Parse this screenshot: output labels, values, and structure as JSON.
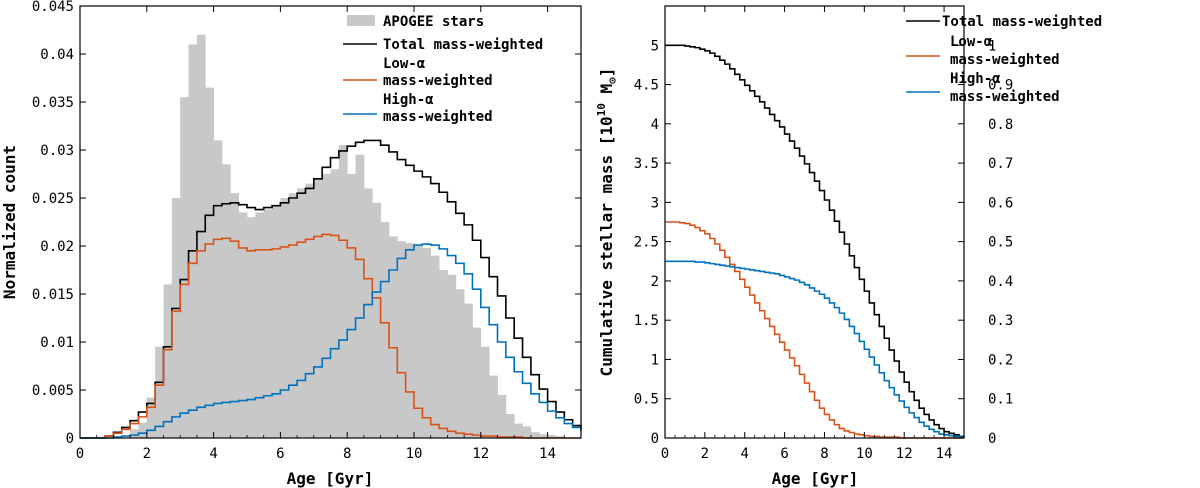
{
  "chart_data": [
    {
      "type": "histogram",
      "xlabel": "Age [Gyr]",
      "ylabel": "Normalized count",
      "xlim": [
        0,
        15
      ],
      "ylim": [
        0,
        0.045
      ],
      "xticks": [
        0,
        2,
        4,
        6,
        8,
        10,
        12,
        14
      ],
      "yticks": [
        0,
        0.005,
        0.01,
        0.015,
        0.02,
        0.025,
        0.03,
        0.035,
        0.04,
        0.045
      ],
      "ytick_labels": [
        "0",
        "0.005",
        "0.01",
        "0.015",
        "0.02",
        "0.025",
        "0.03",
        "0.035",
        "0.04",
        "0.045"
      ],
      "bin_width": 0.25,
      "x_start": 0,
      "legend_position": "top-right",
      "series": [
        {
          "name": "APOGEE stars",
          "style": "filled",
          "color": "#c8c8c8",
          "values": [
            0,
            0,
            0,
            0,
            0,
            0,
            0.0009,
            0.0016,
            0.0042,
            0.0095,
            0.016,
            0.025,
            0.0355,
            0.041,
            0.042,
            0.0365,
            0.031,
            0.0285,
            0.0255,
            0.0235,
            0.023,
            0.0235,
            0.0238,
            0.0242,
            0.025,
            0.0255,
            0.026,
            0.0265,
            0.027,
            0.0275,
            0.028,
            0.0305,
            0.0275,
            0.0295,
            0.026,
            0.0245,
            0.0225,
            0.021,
            0.0205,
            0.0203,
            0.02,
            0.0198,
            0.019,
            0.0175,
            0.017,
            0.0155,
            0.014,
            0.0115,
            0.0095,
            0.0065,
            0.0045,
            0.0025,
            0.0015,
            0.0012,
            0.0006,
            0.0004,
            0.0003,
            0.0002,
            0,
            0,
            0
          ]
        },
        {
          "name": "Total mass-weighted",
          "style": "step",
          "color": "#000000",
          "values": [
            0,
            0,
            0,
            0.0002,
            0.0006,
            0.0011,
            0.0018,
            0.0027,
            0.0036,
            0.0058,
            0.0095,
            0.0135,
            0.0165,
            0.0195,
            0.0215,
            0.0232,
            0.0242,
            0.0244,
            0.0245,
            0.0243,
            0.024,
            0.0238,
            0.024,
            0.0242,
            0.0245,
            0.025,
            0.0255,
            0.026,
            0.027,
            0.0282,
            0.0292,
            0.0299,
            0.0304,
            0.0308,
            0.031,
            0.031,
            0.0305,
            0.0298,
            0.029,
            0.0284,
            0.0278,
            0.0272,
            0.0265,
            0.0256,
            0.0246,
            0.0234,
            0.0222,
            0.0206,
            0.0188,
            0.0168,
            0.0148,
            0.0125,
            0.0104,
            0.0084,
            0.0066,
            0.0051,
            0.0038,
            0.0027,
            0.0019,
            0.0013,
            0.0008
          ]
        },
        {
          "name": "Low-α mass-weighted",
          "style": "step",
          "color": "#d95319",
          "values": [
            0,
            0,
            0,
            0.0002,
            0.0005,
            0.0009,
            0.0015,
            0.0022,
            0.0032,
            0.0055,
            0.0092,
            0.0132,
            0.016,
            0.0182,
            0.0195,
            0.0202,
            0.0207,
            0.0208,
            0.0205,
            0.0198,
            0.0195,
            0.0196,
            0.0196,
            0.0197,
            0.0199,
            0.0201,
            0.0204,
            0.0207,
            0.021,
            0.0212,
            0.0211,
            0.0206,
            0.0198,
            0.0186,
            0.0166,
            0.0146,
            0.012,
            0.0094,
            0.0068,
            0.0048,
            0.0031,
            0.0021,
            0.0014,
            0.001,
            0.0007,
            0.0005,
            0.0004,
            0.0003,
            0.0002,
            0.0002,
            0.0001,
            0.0001,
            0.0001,
            0,
            0,
            0,
            0,
            0,
            0,
            0,
            0
          ]
        },
        {
          "name": "High-α mass-weighted",
          "style": "step",
          "color": "#0072bd",
          "values": [
            0,
            0,
            0,
            0,
            0.0001,
            0.0002,
            0.0003,
            0.0005,
            0.0008,
            0.0012,
            0.0017,
            0.0022,
            0.0026,
            0.0029,
            0.0032,
            0.0034,
            0.0036,
            0.0037,
            0.0038,
            0.0039,
            0.004,
            0.0042,
            0.0044,
            0.0046,
            0.005,
            0.0055,
            0.006,
            0.0067,
            0.0074,
            0.0083,
            0.0093,
            0.0102,
            0.0113,
            0.0125,
            0.0139,
            0.0152,
            0.0163,
            0.0175,
            0.0187,
            0.0196,
            0.0201,
            0.0202,
            0.0201,
            0.0197,
            0.019,
            0.0182,
            0.0171,
            0.0155,
            0.0136,
            0.0118,
            0.01,
            0.0084,
            0.0069,
            0.0057,
            0.0046,
            0.0037,
            0.0028,
            0.0021,
            0.0015,
            0.0011,
            0.0008
          ]
        }
      ],
      "legend": [
        "APOGEE stars",
        "Total mass-weighted",
        "Low-α",
        "mass-weighted",
        "High-α",
        "mass-weighted"
      ]
    },
    {
      "type": "line",
      "xlabel": "Age [Gyr]",
      "ylabel": "Cumulative stellar mass [10",
      "ylabel_sup": "10",
      "ylabel_unit": " M",
      "ylabel_sub": "⊙",
      "ylabel_close": "]",
      "xlim": [
        0,
        15
      ],
      "ylim": [
        0,
        5.5
      ],
      "right_ylim": [
        0,
        1.1
      ],
      "xticks": [
        0,
        2,
        4,
        6,
        8,
        10,
        12,
        14
      ],
      "yticks": [
        0,
        0.5,
        1,
        1.5,
        2,
        2.5,
        3,
        3.5,
        4,
        4.5,
        5
      ],
      "ytick_labels": [
        "0",
        "0.5",
        "1",
        "1.5",
        "2",
        "2.5",
        "3",
        "3.5",
        "4",
        "4.5",
        "5"
      ],
      "right_yticks": [
        0,
        0.1,
        0.2,
        0.3,
        0.4,
        0.5,
        0.6,
        0.7,
        0.8,
        0.9,
        1
      ],
      "right_ytick_labels": [
        "0",
        "0.1",
        "0.2",
        "0.3",
        "0.4",
        "0.5",
        "0.6",
        "0.7",
        "0.8",
        "0.9",
        "1"
      ],
      "bin_width": 0.25,
      "x_start": 0,
      "legend_position": "top-right",
      "series": [
        {
          "name": "Total mass-weighted",
          "color": "#000000",
          "values": [
            5.0,
            5.0,
            5.0,
            5.0,
            4.99,
            4.98,
            4.97,
            4.95,
            4.93,
            4.9,
            4.86,
            4.81,
            4.76,
            4.7,
            4.63,
            4.56,
            4.49,
            4.42,
            4.35,
            4.28,
            4.2,
            4.12,
            4.04,
            3.96,
            3.87,
            3.78,
            3.69,
            3.59,
            3.49,
            3.38,
            3.27,
            3.15,
            3.03,
            2.9,
            2.76,
            2.62,
            2.47,
            2.32,
            2.17,
            2.02,
            1.87,
            1.72,
            1.57,
            1.42,
            1.27,
            1.12,
            0.98,
            0.84,
            0.71,
            0.59,
            0.48,
            0.38,
            0.3,
            0.23,
            0.17,
            0.12,
            0.08,
            0.06,
            0.04,
            0.02,
            0.01
          ]
        },
        {
          "name": "Low-α mass-weighted",
          "color": "#d95319",
          "values": [
            2.75,
            2.75,
            2.75,
            2.74,
            2.73,
            2.71,
            2.68,
            2.64,
            2.6,
            2.54,
            2.47,
            2.39,
            2.3,
            2.21,
            2.12,
            2.02,
            1.92,
            1.82,
            1.72,
            1.62,
            1.52,
            1.42,
            1.32,
            1.22,
            1.12,
            1.02,
            0.92,
            0.81,
            0.7,
            0.59,
            0.48,
            0.38,
            0.3,
            0.23,
            0.17,
            0.12,
            0.09,
            0.07,
            0.05,
            0.04,
            0.03,
            0.02,
            0.02,
            0.01,
            0.01,
            0.01,
            0.01,
            0,
            0,
            0,
            0,
            0,
            0,
            0,
            0,
            0,
            0,
            0,
            0,
            0,
            0
          ]
        },
        {
          "name": "High-α mass-weighted",
          "color": "#0072bd",
          "values": [
            2.25,
            2.25,
            2.25,
            2.25,
            2.25,
            2.25,
            2.24,
            2.24,
            2.23,
            2.22,
            2.21,
            2.2,
            2.19,
            2.18,
            2.17,
            2.16,
            2.15,
            2.14,
            2.13,
            2.12,
            2.11,
            2.1,
            2.09,
            2.07,
            2.05,
            2.03,
            2.01,
            1.98,
            1.95,
            1.91,
            1.87,
            1.83,
            1.78,
            1.72,
            1.66,
            1.59,
            1.51,
            1.42,
            1.33,
            1.23,
            1.13,
            1.03,
            0.93,
            0.83,
            0.73,
            0.64,
            0.55,
            0.47,
            0.39,
            0.32,
            0.26,
            0.2,
            0.15,
            0.11,
            0.08,
            0.05,
            0.04,
            0.03,
            0.02,
            0.01,
            0.01
          ]
        }
      ],
      "legend": [
        "Total mass-weighted",
        "Low-α",
        "mass-weighted",
        "High-α",
        "mass-weighted"
      ]
    }
  ]
}
